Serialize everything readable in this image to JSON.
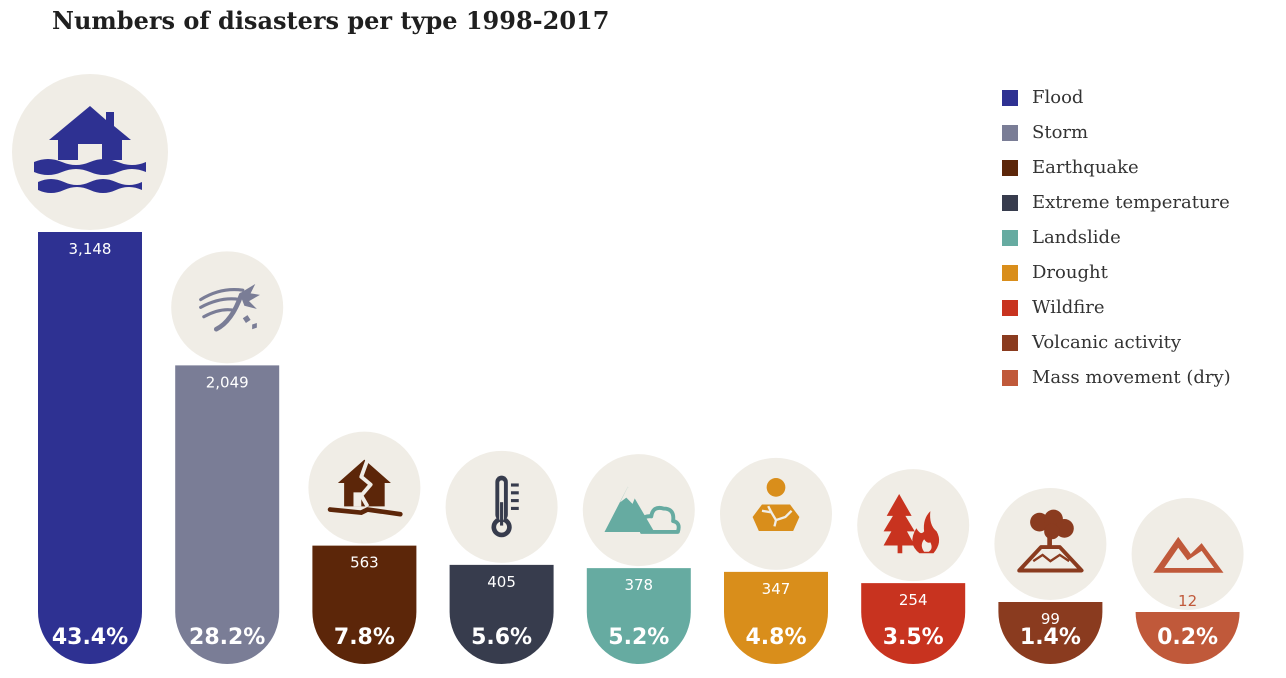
{
  "chart_data": {
    "type": "bar",
    "title": "Numbers of disasters per type 1998-2017",
    "xlabel": "",
    "ylabel": "",
    "ylim": [
      0,
      3148
    ],
    "grid": false,
    "legend_position": "top-right",
    "categories": [
      "Flood",
      "Storm",
      "Earthquake",
      "Extreme temperature",
      "Landslide",
      "Drought",
      "Wildfire",
      "Volcanic activity",
      "Mass movement (dry)"
    ],
    "values": [
      3148,
      2049,
      563,
      405,
      378,
      347,
      254,
      99,
      12
    ],
    "value_labels": [
      "3,148",
      "2,049",
      "563",
      "405",
      "378",
      "347",
      "254",
      "99",
      "12"
    ],
    "percent_labels": [
      "43.4%",
      "28.2%",
      "7.8%",
      "5.6%",
      "5.2%",
      "4.8%",
      "3.5%",
      "1.4%",
      "0.2%"
    ],
    "colors": [
      "#2e3192",
      "#7a7d96",
      "#5c2609",
      "#373c4d",
      "#66aba1",
      "#d98e1b",
      "#c8331f",
      "#8a3b1f",
      "#c0593a"
    ],
    "icons": [
      "flooded-house-icon",
      "storm-wind-palm-icon",
      "cracked-house-icon",
      "thermometer-icon",
      "mountain-cloud-landslide-icon",
      "sun-cracked-earth-icon",
      "tree-fire-icon",
      "volcano-smoke-icon",
      "mountain-range-icon"
    ],
    "icon_background": "#f0ede6"
  }
}
